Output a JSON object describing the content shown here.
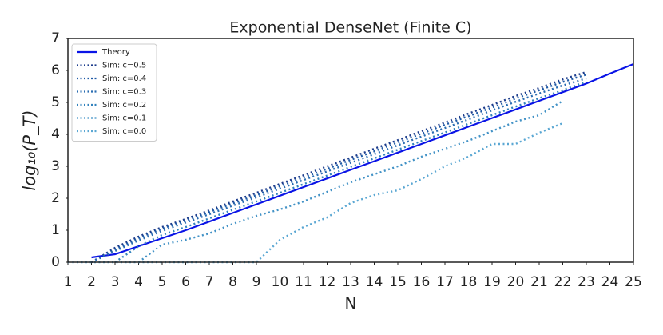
{
  "chart_data": {
    "type": "line",
    "title": "Exponential DenseNet (Finite C)",
    "x_label": "N",
    "y_label": "log₁₀(P_T)",
    "xlim": [
      1,
      25
    ],
    "xticks": [
      1,
      2,
      3,
      4,
      5,
      6,
      7,
      8,
      9,
      10,
      11,
      12,
      13,
      14,
      15,
      16,
      17,
      18,
      19,
      20,
      21,
      22,
      23,
      24,
      25
    ],
    "ylim": [
      0,
      7
    ],
    "yticks": [
      0,
      1,
      2,
      3,
      4,
      5,
      6,
      7
    ],
    "legend": "upper left",
    "series": [
      {
        "name": "Theory",
        "color": "#0a14e6",
        "style": "solid",
        "x": [
          2,
          3,
          4,
          5,
          6,
          7,
          8,
          9,
          10,
          11,
          12,
          13,
          14,
          15,
          16,
          17,
          18,
          19,
          20,
          21,
          22,
          23,
          24,
          25
        ],
        "values": [
          0.15,
          0.25,
          0.5,
          0.75,
          1.0,
          1.27,
          1.54,
          1.81,
          2.08,
          2.35,
          2.62,
          2.89,
          3.16,
          3.43,
          3.7,
          3.97,
          4.24,
          4.51,
          4.78,
          5.05,
          5.32,
          5.59,
          5.9,
          6.2
        ]
      },
      {
        "name": "Sim: c=0.5",
        "color": "#1c3c8c",
        "style": "dotted",
        "x": [
          2,
          3,
          4,
          5,
          6,
          7,
          8,
          9,
          10,
          11,
          12,
          13,
          14,
          15,
          16,
          17,
          18,
          19,
          20,
          21,
          22,
          23
        ],
        "values": [
          0.0,
          0.45,
          0.8,
          1.1,
          1.35,
          1.62,
          1.9,
          2.17,
          2.45,
          2.72,
          3.0,
          3.27,
          3.55,
          3.82,
          4.1,
          4.37,
          4.65,
          4.92,
          5.2,
          5.45,
          5.72,
          5.95
        ]
      },
      {
        "name": "Sim: c=0.4",
        "color": "#1f5aa6",
        "style": "dotted",
        "x": [
          2,
          3,
          4,
          5,
          6,
          7,
          8,
          9,
          10,
          11,
          12,
          13,
          14,
          15,
          16,
          17,
          18,
          19,
          20,
          21,
          22,
          23
        ],
        "values": [
          0.0,
          0.4,
          0.75,
          1.05,
          1.3,
          1.57,
          1.84,
          2.1,
          2.38,
          2.65,
          2.92,
          3.2,
          3.47,
          3.75,
          4.02,
          4.3,
          4.57,
          4.84,
          5.12,
          5.38,
          5.64,
          5.87
        ]
      },
      {
        "name": "Sim: c=0.3",
        "color": "#2a6db2",
        "style": "dotted",
        "x": [
          2,
          3,
          4,
          5,
          6,
          7,
          8,
          9,
          10,
          11,
          12,
          13,
          14,
          15,
          16,
          17,
          18,
          19,
          20,
          21,
          22,
          23
        ],
        "values": [
          0.0,
          0.35,
          0.68,
          0.98,
          1.24,
          1.5,
          1.77,
          2.03,
          2.3,
          2.57,
          2.84,
          3.11,
          3.38,
          3.66,
          3.93,
          4.2,
          4.47,
          4.75,
          5.02,
          5.28,
          5.53,
          5.75
        ]
      },
      {
        "name": "Sim: c=0.2",
        "color": "#3182bd",
        "style": "dotted",
        "x": [
          3,
          4,
          5,
          6,
          7,
          8,
          9,
          10,
          11,
          12,
          13,
          14,
          15,
          16,
          17,
          18,
          19,
          20,
          21,
          22,
          23
        ],
        "values": [
          0.0,
          0.5,
          0.85,
          1.1,
          1.37,
          1.64,
          1.9,
          2.17,
          2.44,
          2.71,
          2.98,
          3.25,
          3.52,
          3.79,
          4.06,
          4.33,
          4.6,
          4.87,
          5.13,
          5.38,
          5.65
        ]
      },
      {
        "name": "Sim: c=0.1",
        "color": "#4292c6",
        "style": "dotted",
        "x": [
          4,
          5,
          6,
          7,
          8,
          9,
          10,
          11,
          12,
          13,
          14,
          15,
          16,
          17,
          18,
          19,
          20,
          21,
          22
        ],
        "values": [
          0.0,
          0.55,
          0.7,
          0.9,
          1.2,
          1.45,
          1.65,
          1.9,
          2.2,
          2.5,
          2.75,
          3.0,
          3.3,
          3.55,
          3.8,
          4.1,
          4.4,
          4.6,
          5.05
        ]
      },
      {
        "name": "Sim: c=0.0",
        "color": "#5aa7d3",
        "style": "dotted",
        "x": [
          1,
          2,
          3,
          4,
          5,
          6,
          7,
          8,
          9,
          10,
          11,
          12,
          13,
          14,
          15,
          16,
          17,
          18,
          19,
          20,
          21,
          22
        ],
        "values": [
          0,
          0,
          0,
          0,
          0,
          0,
          0,
          0,
          0,
          0.7,
          1.1,
          1.4,
          1.85,
          2.1,
          2.25,
          2.6,
          3.0,
          3.3,
          3.7,
          3.7,
          4.05,
          4.35
        ]
      }
    ]
  }
}
